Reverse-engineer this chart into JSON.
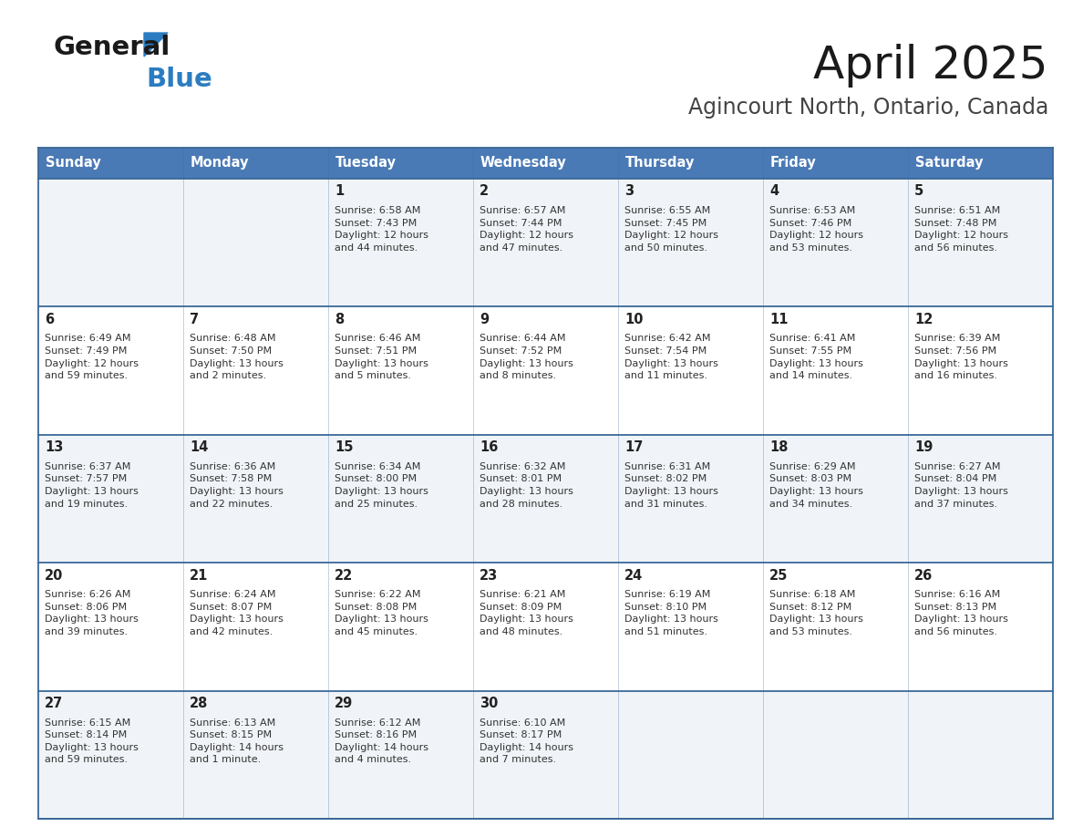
{
  "title": "April 2025",
  "subtitle": "Agincourt North, Ontario, Canada",
  "header_bg": "#4a7ab5",
  "header_text": "#ffffff",
  "row0_bg": "#f0f4f8",
  "row1_bg": "#ffffff",
  "border_color": "#3a6898",
  "text_color": "#333333",
  "day_num_color": "#222222",
  "days_of_week": [
    "Sunday",
    "Monday",
    "Tuesday",
    "Wednesday",
    "Thursday",
    "Friday",
    "Saturday"
  ],
  "weeks": [
    [
      {
        "day": "",
        "info": ""
      },
      {
        "day": "",
        "info": ""
      },
      {
        "day": "1",
        "info": "Sunrise: 6:58 AM\nSunset: 7:43 PM\nDaylight: 12 hours\nand 44 minutes."
      },
      {
        "day": "2",
        "info": "Sunrise: 6:57 AM\nSunset: 7:44 PM\nDaylight: 12 hours\nand 47 minutes."
      },
      {
        "day": "3",
        "info": "Sunrise: 6:55 AM\nSunset: 7:45 PM\nDaylight: 12 hours\nand 50 minutes."
      },
      {
        "day": "4",
        "info": "Sunrise: 6:53 AM\nSunset: 7:46 PM\nDaylight: 12 hours\nand 53 minutes."
      },
      {
        "day": "5",
        "info": "Sunrise: 6:51 AM\nSunset: 7:48 PM\nDaylight: 12 hours\nand 56 minutes."
      }
    ],
    [
      {
        "day": "6",
        "info": "Sunrise: 6:49 AM\nSunset: 7:49 PM\nDaylight: 12 hours\nand 59 minutes."
      },
      {
        "day": "7",
        "info": "Sunrise: 6:48 AM\nSunset: 7:50 PM\nDaylight: 13 hours\nand 2 minutes."
      },
      {
        "day": "8",
        "info": "Sunrise: 6:46 AM\nSunset: 7:51 PM\nDaylight: 13 hours\nand 5 minutes."
      },
      {
        "day": "9",
        "info": "Sunrise: 6:44 AM\nSunset: 7:52 PM\nDaylight: 13 hours\nand 8 minutes."
      },
      {
        "day": "10",
        "info": "Sunrise: 6:42 AM\nSunset: 7:54 PM\nDaylight: 13 hours\nand 11 minutes."
      },
      {
        "day": "11",
        "info": "Sunrise: 6:41 AM\nSunset: 7:55 PM\nDaylight: 13 hours\nand 14 minutes."
      },
      {
        "day": "12",
        "info": "Sunrise: 6:39 AM\nSunset: 7:56 PM\nDaylight: 13 hours\nand 16 minutes."
      }
    ],
    [
      {
        "day": "13",
        "info": "Sunrise: 6:37 AM\nSunset: 7:57 PM\nDaylight: 13 hours\nand 19 minutes."
      },
      {
        "day": "14",
        "info": "Sunrise: 6:36 AM\nSunset: 7:58 PM\nDaylight: 13 hours\nand 22 minutes."
      },
      {
        "day": "15",
        "info": "Sunrise: 6:34 AM\nSunset: 8:00 PM\nDaylight: 13 hours\nand 25 minutes."
      },
      {
        "day": "16",
        "info": "Sunrise: 6:32 AM\nSunset: 8:01 PM\nDaylight: 13 hours\nand 28 minutes."
      },
      {
        "day": "17",
        "info": "Sunrise: 6:31 AM\nSunset: 8:02 PM\nDaylight: 13 hours\nand 31 minutes."
      },
      {
        "day": "18",
        "info": "Sunrise: 6:29 AM\nSunset: 8:03 PM\nDaylight: 13 hours\nand 34 minutes."
      },
      {
        "day": "19",
        "info": "Sunrise: 6:27 AM\nSunset: 8:04 PM\nDaylight: 13 hours\nand 37 minutes."
      }
    ],
    [
      {
        "day": "20",
        "info": "Sunrise: 6:26 AM\nSunset: 8:06 PM\nDaylight: 13 hours\nand 39 minutes."
      },
      {
        "day": "21",
        "info": "Sunrise: 6:24 AM\nSunset: 8:07 PM\nDaylight: 13 hours\nand 42 minutes."
      },
      {
        "day": "22",
        "info": "Sunrise: 6:22 AM\nSunset: 8:08 PM\nDaylight: 13 hours\nand 45 minutes."
      },
      {
        "day": "23",
        "info": "Sunrise: 6:21 AM\nSunset: 8:09 PM\nDaylight: 13 hours\nand 48 minutes."
      },
      {
        "day": "24",
        "info": "Sunrise: 6:19 AM\nSunset: 8:10 PM\nDaylight: 13 hours\nand 51 minutes."
      },
      {
        "day": "25",
        "info": "Sunrise: 6:18 AM\nSunset: 8:12 PM\nDaylight: 13 hours\nand 53 minutes."
      },
      {
        "day": "26",
        "info": "Sunrise: 6:16 AM\nSunset: 8:13 PM\nDaylight: 13 hours\nand 56 minutes."
      }
    ],
    [
      {
        "day": "27",
        "info": "Sunrise: 6:15 AM\nSunset: 8:14 PM\nDaylight: 13 hours\nand 59 minutes."
      },
      {
        "day": "28",
        "info": "Sunrise: 6:13 AM\nSunset: 8:15 PM\nDaylight: 14 hours\nand 1 minute."
      },
      {
        "day": "29",
        "info": "Sunrise: 6:12 AM\nSunset: 8:16 PM\nDaylight: 14 hours\nand 4 minutes."
      },
      {
        "day": "30",
        "info": "Sunrise: 6:10 AM\nSunset: 8:17 PM\nDaylight: 14 hours\nand 7 minutes."
      },
      {
        "day": "",
        "info": ""
      },
      {
        "day": "",
        "info": ""
      },
      {
        "day": "",
        "info": ""
      }
    ]
  ],
  "logo_general_color": "#1a1a1a",
  "logo_blue_color": "#2b7cc1",
  "logo_triangle_color": "#2b7cc1",
  "fig_width": 11.88,
  "fig_height": 9.18,
  "dpi": 100
}
